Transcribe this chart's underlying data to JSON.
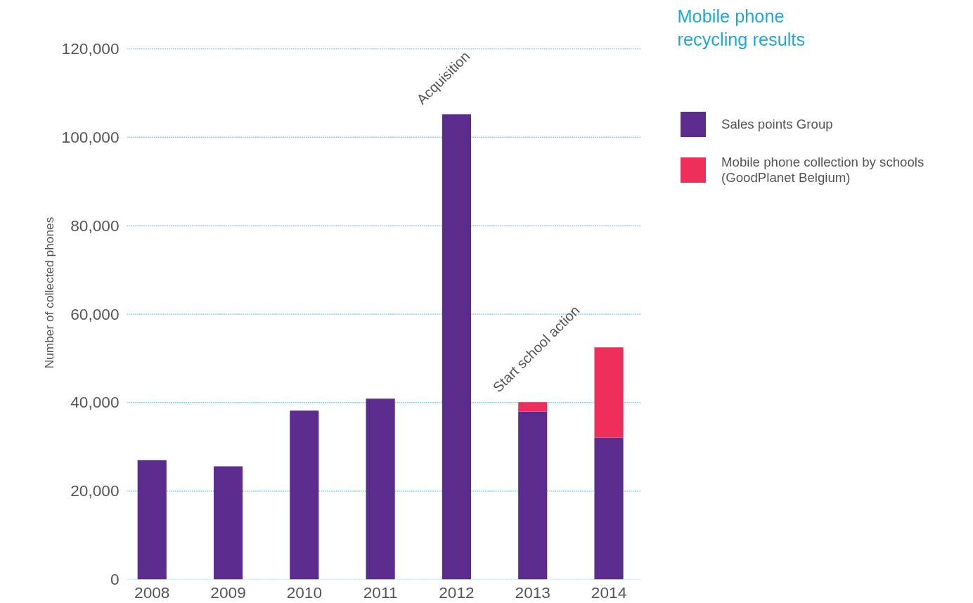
{
  "chart_data": {
    "type": "bar",
    "title": "Mobile phone\nrecycling results",
    "ylabel": "Number of collected phones",
    "categories": [
      "2008",
      "2009",
      "2010",
      "2011",
      "2012",
      "2013",
      "2014"
    ],
    "stacked": true,
    "series": [
      {
        "name": "Sales points Group",
        "color": "#5b2c8e",
        "values": [
          27000,
          25600,
          38200,
          40900,
          105200,
          38000,
          32100
        ]
      },
      {
        "name": "Mobile phone collection by schools\n(GoodPlanet Belgium)",
        "color": "#ee2d5b",
        "values": [
          null,
          null,
          null,
          null,
          null,
          2100,
          20400
        ]
      }
    ],
    "ylim": [
      0,
      120000
    ],
    "yticks": [
      {
        "value": 0,
        "label": "0"
      },
      {
        "value": 20000,
        "label": "20,000"
      },
      {
        "value": 40000,
        "label": "40,000"
      },
      {
        "value": 60000,
        "label": "60,000"
      },
      {
        "value": 80000,
        "label": "80,000"
      },
      {
        "value": 100000,
        "label": "100,000"
      },
      {
        "value": 120000,
        "label": "120,000"
      }
    ],
    "grid": "y",
    "legend": "right",
    "annotations": [
      {
        "text": "Acquisition",
        "x": "2012",
        "y": 105200
      },
      {
        "text": "Start school action",
        "x": "2013",
        "y": 40100
      }
    ]
  }
}
